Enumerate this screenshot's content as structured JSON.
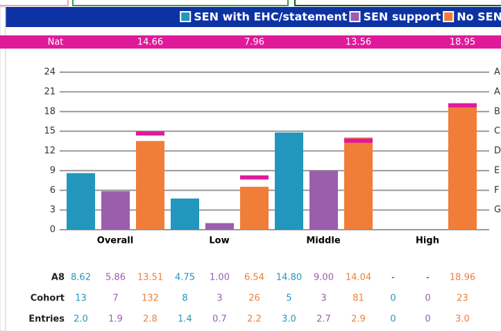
{
  "chart_data": {
    "type": "bar",
    "categories": [
      "Overall",
      "Low",
      "Middle",
      "High"
    ],
    "series": [
      {
        "name": "SEN with EHC/statement",
        "color": "#2396bd",
        "values": [
          8.62,
          4.75,
          14.8,
          null
        ]
      },
      {
        "name": "SEN support",
        "color": "#9b5ead",
        "values": [
          5.86,
          1.0,
          9.0,
          null
        ]
      },
      {
        "name": "No SEN",
        "color": "#f07d38",
        "values": [
          13.51,
          6.54,
          14.04,
          18.96
        ]
      }
    ],
    "national_label": "Nat",
    "national_values": [
      14.66,
      7.96,
      13.56,
      18.95
    ],
    "national_color": "#e0199b",
    "ylim": [
      0,
      24
    ],
    "yticks": [
      0,
      3,
      6,
      9,
      12,
      15,
      18,
      21,
      24
    ],
    "grade_ticks": [
      {
        "value": 24,
        "label": "A*"
      },
      {
        "value": 21,
        "label": "A"
      },
      {
        "value": 18,
        "label": "B"
      },
      {
        "value": 15,
        "label": "C"
      },
      {
        "value": 12,
        "label": "D"
      },
      {
        "value": 9,
        "label": "E"
      },
      {
        "value": 6,
        "label": "F"
      },
      {
        "value": 3,
        "label": "G"
      }
    ],
    "grid": true,
    "table": {
      "rows": [
        {
          "label": "A8",
          "cells": [
            "8.62",
            "5.86",
            "13.51",
            "4.75",
            "1.00",
            "6.54",
            "14.80",
            "9.00",
            "14.04",
            "-",
            "-",
            "18.96"
          ]
        },
        {
          "label": "Cohort",
          "cells": [
            "13",
            "7",
            "132",
            "8",
            "3",
            "26",
            "5",
            "3",
            "81",
            "0",
            "0",
            "23"
          ]
        },
        {
          "label": "Entries",
          "cells": [
            "2.0",
            "1.9",
            "2.8",
            "1.4",
            "0.7",
            "2.2",
            "3.0",
            "2.7",
            "2.9",
            "0",
            "0",
            "3.0"
          ]
        }
      ]
    }
  }
}
